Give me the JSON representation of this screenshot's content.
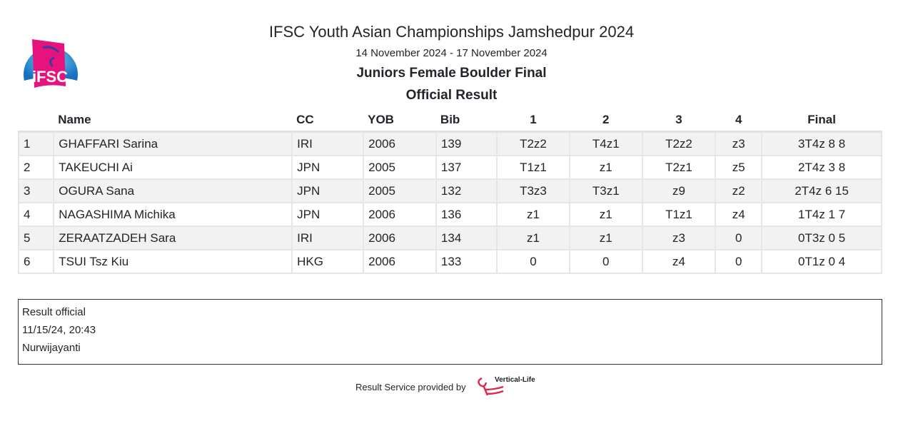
{
  "header": {
    "title": "IFSC Youth Asian Championships Jamshedpur 2024",
    "dates": "14 November 2024 - 17 November 2024",
    "category": "Juniors Female Boulder Final",
    "status": "Official Result",
    "logo_text": "iFSC"
  },
  "table": {
    "columns": [
      "",
      "Name",
      "CC",
      "YOB",
      "Bib",
      "1",
      "2",
      "3",
      "4",
      "Final"
    ],
    "rows": [
      [
        "1",
        "GHAFFARI Sarina",
        "IRI",
        "2006",
        "139",
        "T2z2",
        "T4z1",
        "T2z2",
        "z3",
        "3T4z 8 8"
      ],
      [
        "2",
        "TAKEUCHI Ai",
        "JPN",
        "2005",
        "137",
        "T1z1",
        "z1",
        "T2z1",
        "z5",
        "2T4z 3 8"
      ],
      [
        "3",
        "OGURA Sana",
        "JPN",
        "2005",
        "132",
        "T3z3",
        "T3z1",
        "z9",
        "z2",
        "2T4z 6 15"
      ],
      [
        "4",
        "NAGASHIMA Michika",
        "JPN",
        "2006",
        "136",
        "z1",
        "z1",
        "T1z1",
        "z4",
        "1T4z 1 7"
      ],
      [
        "5",
        "ZERAATZADEH Sara",
        "IRI",
        "2006",
        "134",
        "z1",
        "z1",
        "z3",
        "0",
        "0T3z 0 5"
      ],
      [
        "6",
        "TSUI Tsz Kiu",
        "HKG",
        "2006",
        "133",
        "0",
        "0",
        "z4",
        "0",
        "0T1z 0 4"
      ]
    ]
  },
  "info": {
    "line1": "Result official",
    "line2": "11/15/24, 20:43",
    "line3": "Nurwijayanti"
  },
  "footer": {
    "text": "Result Service provided by",
    "brand": "Vertical-Life"
  },
  "colors": {
    "logo_pink": "#e6137d",
    "logo_blue": "#1e9bd7",
    "row_alt": "#f2f2f2"
  }
}
